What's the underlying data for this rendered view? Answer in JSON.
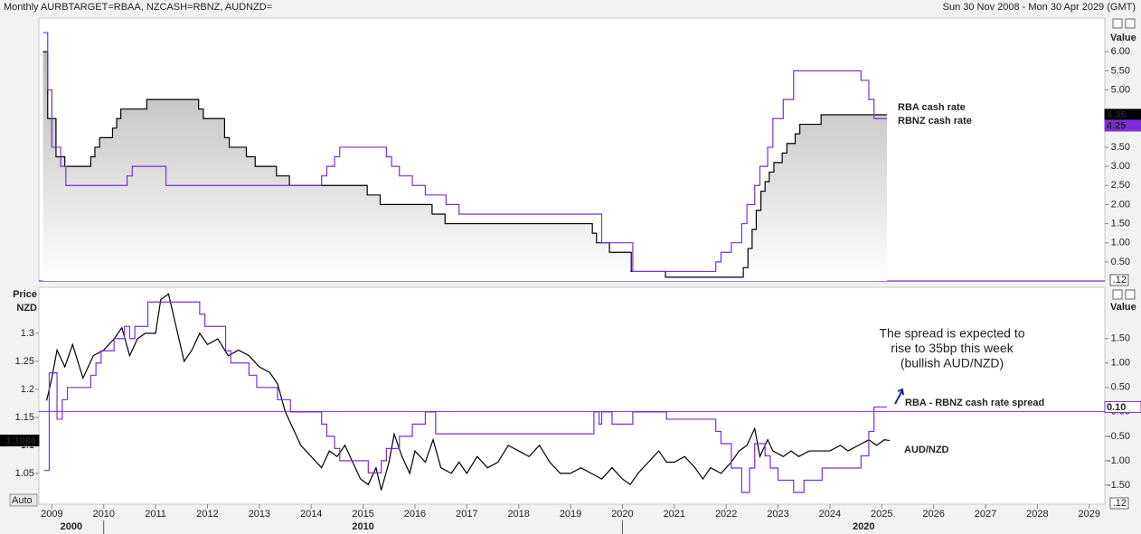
{
  "header": {
    "title": "Monthly AURBTARGET=RBAA, NZCASH=RBNZ, AUDNZD=",
    "range": "Sun 30 Nov 2008 - Mon 30 Apr 2029 (GMT)"
  },
  "chart_data": [
    {
      "type": "line",
      "step": true,
      "y_axis_title": "Value",
      "corner_label": ".12",
      "xlim": [
        2008.75,
        2029.3
      ],
      "ylim": [
        0,
        6.88
      ],
      "yticks": [
        {
          "value": 0.5,
          "label": "0.50"
        },
        {
          "value": 1,
          "label": "1.00"
        },
        {
          "value": 1.5,
          "label": "1.50"
        },
        {
          "value": 2,
          "label": "2.00"
        },
        {
          "value": 2.5,
          "label": "2.50"
        },
        {
          "value": 3,
          "label": "3.00"
        },
        {
          "value": 3.5,
          "label": "3.50"
        },
        {
          "value": 5,
          "label": "5.00"
        },
        {
          "value": 5.5,
          "label": "5.50"
        },
        {
          "value": 6,
          "label": "6.00"
        }
      ],
      "series": [
        {
          "name": "RBA cash rate",
          "color": "#000000",
          "fill": true,
          "last_label": "4.35",
          "x": [
            2008.83,
            2008.92,
            2009.08,
            2009.25,
            2009.75,
            2009.83,
            2009.92,
            2010.17,
            2010.25,
            2010.33,
            2010.83,
            2011.83,
            2011.92,
            2012.33,
            2012.42,
            2012.75,
            2012.92,
            2013.33,
            2013.58,
            2015.08,
            2015.33,
            2016.33,
            2016.58,
            2019.42,
            2019.5,
            2019.75,
            2020.17,
            2020.83,
            2022.33,
            2022.42,
            2022.5,
            2022.58,
            2022.67,
            2022.75,
            2022.83,
            2022.92,
            2023.08,
            2023.17,
            2023.33,
            2023.42,
            2023.83,
            2025.1
          ],
          "values": [
            6.0,
            4.25,
            3.25,
            3.0,
            3.25,
            3.5,
            3.75,
            4.0,
            4.25,
            4.5,
            4.75,
            4.5,
            4.25,
            3.75,
            3.5,
            3.25,
            3.0,
            2.75,
            2.5,
            2.25,
            2.0,
            1.75,
            1.5,
            1.25,
            1.0,
            0.75,
            0.25,
            0.1,
            0.35,
            0.85,
            1.35,
            1.85,
            2.35,
            2.6,
            2.85,
            3.1,
            3.35,
            3.6,
            3.85,
            4.1,
            4.35,
            4.35
          ]
        },
        {
          "name": "RBNZ cash rate",
          "color": "#7a2fd8",
          "last_label": "4.25",
          "x": [
            2008.83,
            2008.92,
            2009.0,
            2009.17,
            2009.27,
            2010.45,
            2010.55,
            2011.2,
            2014.2,
            2014.3,
            2014.45,
            2014.55,
            2015.45,
            2015.55,
            2015.7,
            2015.95,
            2016.2,
            2016.6,
            2016.85,
            2019.6,
            2020.2,
            2021.8,
            2021.9,
            2022.1,
            2022.3,
            2022.4,
            2022.55,
            2022.65,
            2022.8,
            2022.9,
            2023.1,
            2023.3,
            2024.6,
            2024.75,
            2024.85,
            2025.1
          ],
          "values": [
            6.5,
            5.0,
            3.5,
            3.0,
            2.5,
            2.75,
            3.0,
            2.5,
            2.75,
            3.0,
            3.25,
            3.5,
            3.25,
            3.0,
            2.75,
            2.5,
            2.25,
            2.0,
            1.75,
            1.0,
            0.25,
            0.5,
            0.75,
            1.0,
            1.5,
            2.0,
            2.5,
            3.0,
            3.5,
            4.25,
            4.75,
            5.5,
            5.25,
            4.75,
            4.25,
            4.25
          ]
        }
      ]
    },
    {
      "type": "line",
      "y_axis_title": "Value",
      "left_axis_title": [
        "Price",
        "NZD"
      ],
      "corner_label": ".12",
      "auto_label": "Auto",
      "annotation": [
        "The spread is expected to",
        "rise to 35bp this week",
        "(bullish AUD/NZD)"
      ],
      "xlim": [
        2008.75,
        2029.3
      ],
      "xticks": [
        2009,
        2010,
        2011,
        2012,
        2013,
        2014,
        2015,
        2016,
        2017,
        2018,
        2019,
        2020,
        2021,
        2022,
        2023,
        2024,
        2025,
        2026,
        2027,
        2028,
        2029
      ],
      "decades": [
        2000,
        2010,
        2020
      ],
      "ylim": [
        0.995,
        1.382
      ],
      "yticks": [
        1.05,
        1.1,
        1.15,
        1.2,
        1.25,
        1.3
      ],
      "y2lim": [
        -1.89,
        2.55
      ],
      "y2ticks": [
        {
          "value": -1.5,
          "label": "-1.50"
        },
        {
          "value": -1,
          "label": "-1.00"
        },
        {
          "value": -0.5,
          "label": "-0.50"
        },
        {
          "value": 0,
          "label": "0.00"
        },
        {
          "value": 0.5,
          "label": "0.50"
        },
        {
          "value": 1,
          "label": "1.00"
        },
        {
          "value": 1.5,
          "label": "1.50"
        }
      ],
      "series": [
        {
          "name": "AUD/NZD",
          "color": "#000000",
          "last_label": "1.1086",
          "x": [
            2008.9,
            2009.0,
            2009.1,
            2009.25,
            2009.4,
            2009.6,
            2009.8,
            2010.0,
            2010.2,
            2010.35,
            2010.5,
            2010.65,
            2010.8,
            2011.0,
            2011.1,
            2011.25,
            2011.4,
            2011.55,
            2011.7,
            2011.85,
            2012.0,
            2012.2,
            2012.4,
            2012.6,
            2012.8,
            2013.0,
            2013.2,
            2013.35,
            2013.5,
            2013.65,
            2013.8,
            2014.0,
            2014.2,
            2014.35,
            2014.5,
            2014.65,
            2014.8,
            2014.95,
            2015.1,
            2015.25,
            2015.35,
            2015.5,
            2015.6,
            2015.75,
            2015.9,
            2016.0,
            2016.2,
            2016.35,
            2016.5,
            2016.7,
            2016.85,
            2017.0,
            2017.2,
            2017.4,
            2017.6,
            2017.8,
            2018.0,
            2018.2,
            2018.4,
            2018.6,
            2018.8,
            2019.0,
            2019.2,
            2019.4,
            2019.6,
            2019.8,
            2020.0,
            2020.15,
            2020.3,
            2020.5,
            2020.7,
            2020.85,
            2021.0,
            2021.2,
            2021.4,
            2021.55,
            2021.7,
            2021.9,
            2022.1,
            2022.25,
            2022.4,
            2022.55,
            2022.65,
            2022.8,
            2022.9,
            2023.1,
            2023.25,
            2023.4,
            2023.6,
            2023.8,
            2024.0,
            2024.2,
            2024.35,
            2024.55,
            2024.75,
            2024.9,
            2025.05,
            2025.15
          ],
          "values": [
            1.18,
            1.22,
            1.27,
            1.24,
            1.28,
            1.22,
            1.26,
            1.27,
            1.29,
            1.31,
            1.26,
            1.29,
            1.3,
            1.3,
            1.36,
            1.37,
            1.31,
            1.25,
            1.27,
            1.3,
            1.28,
            1.29,
            1.26,
            1.27,
            1.26,
            1.24,
            1.23,
            1.21,
            1.16,
            1.13,
            1.1,
            1.08,
            1.06,
            1.09,
            1.08,
            1.1,
            1.07,
            1.04,
            1.03,
            1.06,
            1.02,
            1.07,
            1.12,
            1.08,
            1.05,
            1.09,
            1.07,
            1.11,
            1.06,
            1.05,
            1.07,
            1.05,
            1.08,
            1.06,
            1.07,
            1.1,
            1.09,
            1.08,
            1.1,
            1.07,
            1.05,
            1.05,
            1.06,
            1.05,
            1.04,
            1.06,
            1.04,
            1.03,
            1.05,
            1.07,
            1.09,
            1.07,
            1.07,
            1.08,
            1.06,
            1.04,
            1.06,
            1.05,
            1.07,
            1.09,
            1.1,
            1.13,
            1.08,
            1.11,
            1.09,
            1.08,
            1.09,
            1.08,
            1.09,
            1.09,
            1.09,
            1.1,
            1.09,
            1.1,
            1.11,
            1.1,
            1.11,
            1.1086
          ]
        },
        {
          "name": "RBA - RBNZ cash rate spread",
          "color": "#7a2fd8",
          "axis": "y2",
          "step": true,
          "last_label": "0.10",
          "x": [
            2008.85,
            2008.95,
            2009.1,
            2009.2,
            2009.3,
            2009.75,
            2009.85,
            2009.95,
            2010.2,
            2010.4,
            2010.5,
            2010.6,
            2010.85,
            2011.85,
            2011.95,
            2012.35,
            2012.45,
            2012.8,
            2012.95,
            2013.35,
            2013.6,
            2014.2,
            2014.3,
            2014.45,
            2014.55,
            2015.1,
            2015.35,
            2015.45,
            2015.7,
            2015.95,
            2016.2,
            2016.4,
            2019.45,
            2019.55,
            2019.6,
            2019.8,
            2020.2,
            2020.85,
            2021.8,
            2021.9,
            2022.1,
            2022.3,
            2022.45,
            2022.55,
            2022.75,
            2022.85,
            2023.0,
            2023.3,
            2023.5,
            2023.85,
            2024.6,
            2024.75,
            2024.85,
            2025.1
          ],
          "values": [
            -1.2,
            0.8,
            -0.15,
            0.25,
            0.5,
            0.75,
            1.0,
            1.25,
            1.5,
            1.75,
            1.5,
            1.75,
            2.25,
            2.0,
            1.75,
            1.25,
            1.0,
            0.75,
            0.5,
            0.25,
            0.0,
            -0.25,
            -0.5,
            -0.75,
            -1.0,
            -1.25,
            -1.0,
            -0.75,
            -0.5,
            -0.25,
            0.0,
            -0.45,
            0.0,
            -0.25,
            0.0,
            -0.25,
            0.0,
            -0.15,
            -0.4,
            -0.65,
            -1.15,
            -1.65,
            -1.15,
            -0.65,
            -0.9,
            -1.15,
            -1.4,
            -1.65,
            -1.4,
            -1.15,
            -0.9,
            -0.4,
            0.1,
            0.1
          ]
        }
      ]
    }
  ]
}
